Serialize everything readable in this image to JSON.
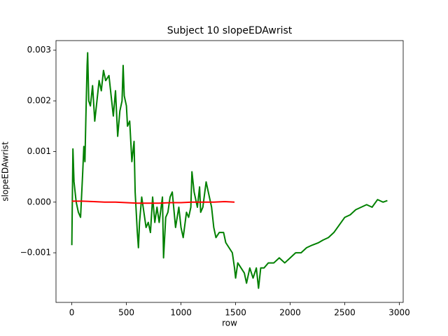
{
  "chart_data": {
    "type": "line",
    "title": "Subject 10 slopeEDAwrist",
    "xlabel": "row",
    "ylabel": "slopeEDAwrist",
    "xlim": [
      -145,
      3035
    ],
    "ylim": [
      -0.00198,
      0.00319
    ],
    "xticks": [
      0,
      500,
      1000,
      1500,
      2000,
      2500,
      3000
    ],
    "yticks": [
      {
        "value": -0.001,
        "label": "−0.001"
      },
      {
        "value": 0,
        "label": "0.000"
      },
      {
        "value": 0.001,
        "label": "0.001"
      },
      {
        "value": 0.002,
        "label": "0.002"
      },
      {
        "value": 0.003,
        "label": "0.003"
      }
    ],
    "grid": false,
    "series": [
      {
        "color": "#008000",
        "x": [
          0,
          10,
          20,
          40,
          60,
          80,
          100,
          110,
          120,
          130,
          140,
          145,
          155,
          170,
          190,
          210,
          230,
          250,
          270,
          290,
          310,
          340,
          360,
          380,
          400,
          420,
          440,
          460,
          470,
          480,
          500,
          510,
          530,
          550,
          570,
          580,
          600,
          610,
          620,
          640,
          660,
          680,
          700,
          720,
          740,
          760,
          780,
          800,
          830,
          840,
          860,
          880,
          900,
          920,
          950,
          980,
          1000,
          1020,
          1050,
          1070,
          1090,
          1100,
          1120,
          1150,
          1170,
          1180,
          1200,
          1230,
          1250,
          1280,
          1300,
          1320,
          1350,
          1390,
          1410,
          1440,
          1470,
          1490,
          1500,
          1520,
          1550,
          1580,
          1600,
          1630,
          1660,
          1690,
          1710,
          1730,
          1760,
          1800,
          1850,
          1900,
          1950,
          2000,
          2050,
          2100,
          2150,
          2200,
          2260,
          2300,
          2350,
          2400,
          2450,
          2500,
          2550,
          2600,
          2650,
          2700,
          2750,
          2800,
          2850,
          2890
        ],
        "values": [
          -0.00085,
          0.00105,
          0.0004,
          0.0,
          -0.0002,
          -0.0003,
          0.0006,
          0.0011,
          0.0008,
          0.0018,
          0.0027,
          0.00295,
          0.002,
          0.0019,
          0.0023,
          0.0016,
          0.002,
          0.0024,
          0.0022,
          0.0026,
          0.0024,
          0.0025,
          0.0021,
          0.0017,
          0.0022,
          0.0013,
          0.0018,
          0.002,
          0.0027,
          0.0021,
          0.0019,
          0.0015,
          0.0016,
          0.0008,
          0.0012,
          0.0002,
          -0.0006,
          -0.0009,
          -0.0004,
          0.0001,
          -0.0002,
          -0.0005,
          -0.0004,
          -0.0006,
          0.0001,
          -0.0004,
          -0.0001,
          -0.0004,
          0.0001,
          -0.0011,
          -0.0003,
          -0.0002,
          0.0001,
          0.0002,
          -0.0005,
          -0.0001,
          -0.0005,
          -0.0007,
          -0.0002,
          -0.0003,
          -0.0001,
          0.0006,
          0.0002,
          -0.0001,
          0.0003,
          -0.0002,
          -0.0001,
          0.0004,
          0.0002,
          -0.0001,
          -0.0005,
          -0.0007,
          -0.0006,
          -0.0006,
          -0.0008,
          -0.0009,
          -0.001,
          -0.0013,
          -0.0015,
          -0.0012,
          -0.0013,
          -0.0014,
          -0.0016,
          -0.0013,
          -0.0015,
          -0.0013,
          -0.0017,
          -0.0013,
          -0.0013,
          -0.0012,
          -0.0012,
          -0.0011,
          -0.0012,
          -0.0011,
          -0.001,
          -0.001,
          -0.0009,
          -0.00085,
          -0.0008,
          -0.00075,
          -0.0007,
          -0.0006,
          -0.00045,
          -0.0003,
          -0.00025,
          -0.00015,
          -0.0001,
          -5e-05,
          -0.0001,
          5e-05,
          0.0,
          3e-05
        ]
      },
      {
        "color": "#ff0000",
        "x": [
          0,
          100,
          200,
          300,
          400,
          500,
          600,
          700,
          800,
          900,
          1000,
          1100,
          1200,
          1300,
          1400,
          1490
        ],
        "values": [
          2e-05,
          2e-05,
          1e-05,
          0.0,
          0.0,
          -1e-05,
          -2e-05,
          -2e-05,
          -2e-05,
          -1e-05,
          -1e-05,
          0.0,
          0.0,
          0.0,
          1e-05,
          0.0
        ]
      }
    ]
  }
}
